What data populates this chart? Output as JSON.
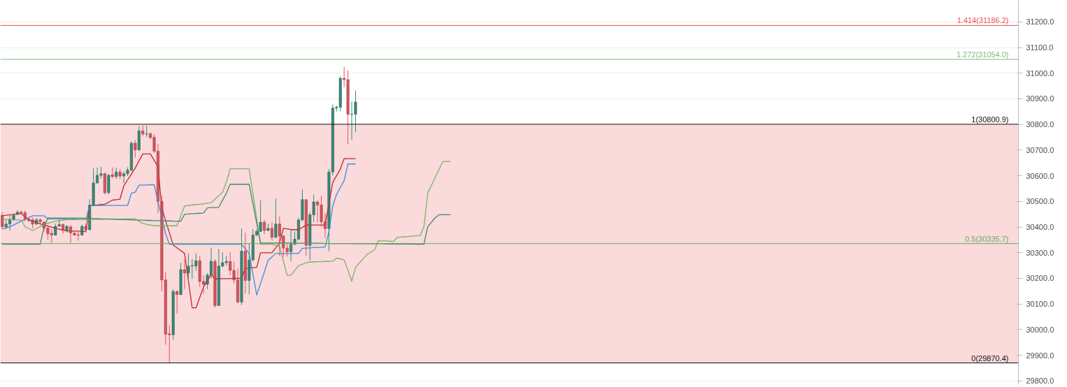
{
  "chart_data": {
    "type": "candlestick",
    "categories": [
      null,
      null,
      null,
      null,
      null,
      null,
      null,
      null,
      null,
      null,
      null,
      null,
      null,
      null,
      null,
      null,
      null,
      null,
      null,
      null,
      null,
      null,
      null,
      null,
      null,
      null,
      null,
      null,
      null,
      null,
      null,
      null,
      null,
      null,
      null,
      null,
      null,
      null,
      null,
      null,
      null,
      null,
      null,
      null,
      null,
      null,
      null,
      null,
      null,
      null,
      null,
      null,
      null,
      null,
      null,
      null,
      null,
      null,
      null,
      null,
      null,
      null,
      null,
      null,
      null,
      null,
      null,
      null,
      null,
      null,
      null,
      null,
      null,
      null,
      null,
      null,
      null,
      null,
      null,
      null,
      null,
      null,
      null,
      null,
      null,
      null,
      null,
      null,
      null,
      null,
      null,
      null,
      null,
      null,
      null,
      null,
      null,
      null,
      null,
      null,
      null,
      null,
      null,
      null,
      null,
      null,
      null,
      null,
      null,
      null,
      null,
      null,
      null,
      null,
      null,
      null,
      null,
      null,
      null,
      null,
      null,
      null,
      null,
      null,
      null,
      null,
      null,
      null,
      null,
      null,
      null,
      null,
      null,
      null,
      null,
      null,
      null,
      null,
      null,
      null,
      null,
      null,
      null,
      null,
      null,
      null,
      null,
      null,
      null,
      null,
      null,
      null,
      null,
      null,
      null,
      null,
      null,
      null,
      null,
      null,
      null,
      null,
      null,
      null,
      null,
      null,
      null,
      null,
      null,
      null,
      null,
      null,
      null,
      null,
      null,
      null,
      null,
      null,
      null,
      null,
      null,
      null,
      null,
      null,
      null,
      null,
      null,
      null,
      null,
      null,
      null,
      null,
      null,
      null,
      null,
      null,
      null,
      null,
      null,
      null,
      null,
      null,
      null,
      null,
      null,
      null,
      null,
      null,
      null,
      null,
      null,
      null,
      null,
      null,
      null,
      null,
      null,
      null,
      null,
      null,
      null,
      null,
      null,
      null,
      null,
      null,
      null,
      null,
      null,
      null,
      null,
      null,
      null,
      null,
      null,
      null,
      null,
      null,
      null,
      null,
      null,
      null,
      null,
      null,
      null,
      null,
      null,
      null,
      null,
      null,
      null,
      null,
      null,
      null,
      null,
      null,
      null,
      null,
      null,
      null,
      null,
      null,
      null,
      null,
      null,
      null,
      null,
      null
    ],
    "ohlc": [
      [
        30446,
        30459,
        30392,
        30401
      ],
      [
        30401,
        30428,
        30392,
        30412
      ],
      [
        30412,
        30446,
        30387,
        30430
      ],
      [
        30430,
        30455,
        30423,
        30446
      ],
      [
        30450,
        30466,
        30446,
        30458
      ],
      [
        30458,
        30464,
        30448,
        30455
      ],
      [
        30456,
        30464,
        30423,
        30431
      ],
      [
        30431,
        30441,
        30419,
        30426
      ],
      [
        30428,
        30437,
        30396,
        30412
      ],
      [
        30412,
        30435,
        30408,
        30428
      ],
      [
        30428,
        30435,
        30410,
        30421
      ],
      [
        30419,
        30423,
        30383,
        30396
      ],
      [
        30396,
        30408,
        30351,
        30374
      ],
      [
        30376,
        30392,
        30338,
        30369
      ],
      [
        30369,
        30414,
        30367,
        30403
      ],
      [
        30404,
        30428,
        30401,
        30410
      ],
      [
        30410,
        30414,
        30374,
        30387
      ],
      [
        30387,
        30408,
        30378,
        30403
      ],
      [
        30401,
        30408,
        30338,
        30377
      ],
      [
        30376,
        30387,
        30367,
        30369
      ],
      [
        30370,
        30387,
        30347,
        30369
      ],
      [
        30369,
        30410,
        30367,
        30403
      ],
      [
        30403,
        30414,
        30378,
        30390
      ],
      [
        30390,
        30509,
        30387,
        30486
      ],
      [
        30485,
        30631,
        30482,
        30572
      ],
      [
        30572,
        30632,
        30570,
        30602
      ],
      [
        30602,
        30635,
        30590,
        30608
      ],
      [
        30608,
        30613,
        30527,
        30534
      ],
      [
        30534,
        30608,
        30527,
        30602
      ],
      [
        30604,
        30633,
        30590,
        30597
      ],
      [
        30597,
        30631,
        30588,
        30615
      ],
      [
        30615,
        30626,
        30588,
        30599
      ],
      [
        30599,
        30617,
        30572,
        30608
      ],
      [
        30608,
        30633,
        30599,
        30622
      ],
      [
        30622,
        30734,
        30617,
        30727
      ],
      [
        30727,
        30739,
        30671,
        30701
      ],
      [
        30701,
        30793,
        30698,
        30775
      ],
      [
        30775,
        30797,
        30754,
        30764
      ],
      [
        30763,
        30795,
        30752,
        30764
      ],
      [
        30764,
        30770,
        30743,
        30749
      ],
      [
        30750,
        30761,
        30689,
        30696
      ],
      [
        30696,
        30725,
        30455,
        30500
      ],
      [
        30500,
        30522,
        30149,
        30194
      ],
      [
        30194,
        30225,
        29941,
        29982
      ],
      [
        29984,
        30018,
        29871,
        29980
      ],
      [
        29980,
        30158,
        29961,
        30149
      ],
      [
        30149,
        30153,
        30063,
        30137
      ],
      [
        30137,
        30261,
        30135,
        30234
      ],
      [
        30234,
        30275,
        30158,
        30221
      ],
      [
        30221,
        30297,
        30185,
        30248
      ],
      [
        30248,
        30275,
        30198,
        30250
      ],
      [
        30248,
        30297,
        30230,
        30269
      ],
      [
        30269,
        30288,
        30167,
        30188
      ],
      [
        30188,
        30212,
        30140,
        30177
      ],
      [
        30177,
        30221,
        30158,
        30213
      ],
      [
        30213,
        30320,
        30198,
        30267
      ],
      [
        30266,
        30275,
        30087,
        30094
      ],
      [
        30094,
        30315,
        30093,
        30248
      ],
      [
        30248,
        30302,
        30243,
        30261
      ],
      [
        30261,
        30288,
        30249,
        30266
      ],
      [
        30266,
        30302,
        30212,
        30231
      ],
      [
        30231,
        30266,
        30180,
        30194
      ],
      [
        30194,
        30239,
        30103,
        30108
      ],
      [
        30108,
        30394,
        30096,
        30306
      ],
      [
        30306,
        30378,
        30140,
        30192
      ],
      [
        30192,
        30338,
        30138,
        30272
      ],
      [
        30272,
        30392,
        30266,
        30369
      ],
      [
        30369,
        30392,
        30365,
        30383
      ],
      [
        30383,
        30504,
        30381,
        30419
      ],
      [
        30419,
        30428,
        30372,
        30387
      ],
      [
        30387,
        30414,
        30383,
        30395
      ],
      [
        30395,
        30419,
        30347,
        30360
      ],
      [
        30360,
        30511,
        30358,
        30412
      ],
      [
        30412,
        30441,
        30288,
        30365
      ],
      [
        30365,
        30369,
        30284,
        30318
      ],
      [
        30318,
        30333,
        30285,
        30304
      ],
      [
        30304,
        30387,
        30266,
        30333
      ],
      [
        30333,
        30383,
        30329,
        30353
      ],
      [
        30353,
        30437,
        30347,
        30428
      ],
      [
        30428,
        30547,
        30423,
        30507
      ],
      [
        30507,
        30507,
        30288,
        30329
      ],
      [
        30329,
        30457,
        30270,
        30448
      ],
      [
        30448,
        30527,
        30419,
        30498
      ],
      [
        30498,
        30504,
        30419,
        30486
      ],
      [
        30486,
        30522,
        30401,
        30421
      ],
      [
        30421,
        30455,
        30358,
        30394
      ],
      [
        30394,
        30626,
        30306,
        30615
      ],
      [
        30615,
        30878,
        30601,
        30864
      ],
      [
        30864,
        30874,
        30851,
        30867
      ],
      [
        30867,
        30987,
        30851,
        30980
      ],
      [
        30980,
        31024,
        30946,
        30975
      ],
      [
        30975,
        31011,
        30723,
        30840
      ],
      [
        30839,
        30889,
        30741,
        30840
      ],
      [
        30840,
        30932,
        30770,
        30888
      ],
      null,
      null,
      null,
      null,
      null,
      null,
      null,
      null,
      null,
      null,
      null,
      null,
      null,
      null,
      null,
      null,
      null,
      null,
      null,
      null,
      null,
      null,
      null,
      null,
      null,
      null,
      null,
      null,
      null,
      null,
      null,
      null,
      null,
      null,
      null,
      null,
      null,
      null,
      null,
      null,
      null,
      null,
      null,
      null,
      null,
      null,
      null,
      null,
      null,
      null,
      null,
      null,
      null,
      null,
      null,
      null,
      null,
      null,
      null,
      null,
      null,
      null,
      null,
      null,
      null,
      null,
      null,
      null,
      null,
      null,
      null,
      null,
      null,
      null,
      null,
      null,
      null,
      null,
      null,
      null,
      null,
      null,
      null,
      null,
      null,
      null,
      null,
      null,
      null,
      null,
      null,
      null,
      null,
      null,
      null,
      null,
      null,
      null,
      null,
      null,
      null,
      null,
      null,
      null,
      null,
      null,
      null,
      null,
      null,
      null,
      null,
      null,
      null,
      null,
      null,
      null,
      null,
      null,
      null,
      null,
      null,
      null,
      null,
      null,
      null,
      null,
      null,
      null,
      null,
      null,
      null,
      null,
      null,
      null,
      null,
      null,
      null,
      null,
      null,
      null,
      null,
      null,
      null,
      null,
      null,
      null,
      null,
      null,
      null,
      null,
      null,
      null,
      null,
      null,
      null,
      null,
      null,
      null,
      null,
      null,
      null,
      null,
      null,
      null,
      null,
      null,
      null,
      null,
      null,
      null,
      null,
      null,
      null,
      null
    ],
    "colors": [
      "#ef4d5a",
      "#2f8f7a",
      "#2f8f7a",
      "#2f8f7a",
      "#2f8f7a",
      "#ef4d5a",
      "#ef4d5a",
      "#ef4d5a",
      "#ef4d5a",
      "#2f8f7a",
      "#ef4d5a",
      "#ef4d5a",
      "#ef4d5a",
      "#ef4d5a",
      "#2f8f7a",
      "#2f8f7a",
      "#ef4d5a",
      "#2f8f7a",
      "#ef4d5a",
      "#ef4d5a",
      "#ef4d5a",
      "#2f8f7a",
      "#ef4d5a",
      "#2f8f7a",
      "#2f8f7a",
      "#2f8f7a",
      "#2f8f7a",
      "#ef4d5a",
      "#2f8f7a",
      "#ef4d5a",
      "#2f8f7a",
      "#ef4d5a",
      "#2f8f7a",
      "#2f8f7a",
      "#2f8f7a",
      "#ef4d5a",
      "#2f8f7a",
      "#ef4d5a",
      "#2f8f7a",
      "#ef4d5a",
      "#ef4d5a",
      "#ef4d5a",
      "#ef4d5a",
      "#ef4d5a",
      "#ef4d5a",
      "#2f8f7a",
      "#ef4d5a",
      "#2f8f7a",
      "#ef4d5a",
      "#2f8f7a",
      "#2f8f7a",
      "#2f8f7a",
      "#ef4d5a",
      "#ef4d5a",
      "#2f8f7a",
      "#2f8f7a",
      "#ef4d5a",
      "#2f8f7a",
      "#2f8f7a",
      "#2f8f7a",
      "#ef4d5a",
      "#ef4d5a",
      "#ef4d5a",
      "#2f8f7a",
      "#ef4d5a",
      "#2f8f7a",
      "#2f8f7a",
      "#2f8f7a",
      "#2f8f7a",
      "#ef4d5a",
      "#2f8f7a",
      "#ef4d5a",
      "#2f8f7a",
      "#ef4d5a",
      "#ef4d5a",
      "#ef4d5a",
      "#2f8f7a",
      "#2f8f7a",
      "#2f8f7a",
      "#2f8f7a",
      "#ef4d5a",
      "#2f8f7a",
      "#2f8f7a",
      "#ef4d5a",
      "#ef4d5a",
      "#ef4d5a",
      "#2f8f7a",
      "#2f8f7a",
      "#2f8f7a",
      "#2f8f7a",
      "#ef4d5a",
      "#ef4d5a",
      "#2f8f7a",
      "#2f8f7a",
      null,
      null,
      null,
      null,
      null,
      null,
      null,
      null,
      null,
      null,
      null,
      null,
      null,
      null,
      null,
      null,
      null,
      null,
      null,
      null,
      null,
      null,
      null,
      null,
      null,
      null,
      null,
      null,
      null,
      null,
      null,
      null,
      null,
      null,
      null,
      null,
      null,
      null,
      null,
      null,
      null,
      null,
      null,
      null,
      null,
      null,
      null,
      null,
      null,
      null,
      null,
      null,
      null,
      null,
      null,
      null,
      null,
      null,
      null,
      null,
      null,
      null,
      null,
      null,
      null,
      null,
      null,
      null,
      null,
      null,
      null,
      null,
      null,
      null,
      null,
      null,
      null,
      null,
      null,
      null,
      null,
      null,
      null,
      null,
      null,
      null,
      null,
      null,
      null,
      null,
      null,
      null,
      null,
      null,
      null,
      null,
      null,
      null,
      null,
      null,
      null,
      null,
      null,
      null,
      null,
      null,
      null,
      null,
      null,
      null,
      null,
      null,
      null,
      null,
      null,
      null,
      null,
      null,
      null,
      null,
      null,
      null,
      null,
      null,
      null,
      null,
      null,
      null,
      null,
      null,
      null,
      null,
      null,
      null,
      null,
      null,
      null,
      null,
      null,
      null,
      null,
      null,
      null,
      null,
      null,
      null,
      null,
      null,
      null,
      null,
      null,
      null,
      null,
      null,
      null,
      null,
      null,
      null,
      null,
      null,
      null,
      null,
      null,
      null,
      null,
      null,
      null,
      null,
      null,
      null,
      null,
      null,
      null,
      null
    ],
    "series": [
      {
        "type": "line",
        "color": "#c0262d",
        "values": [
          30444,
          30446,
          30448,
          30449,
          30451,
          30453,
          30440,
          30428,
          30423,
          30418,
          30413,
          30408,
          30404,
          30400,
          30396,
          30392,
          30388,
          30385,
          30385,
          30384,
          30384,
          30383,
          30383,
          30484,
          30485,
          30486,
          30488,
          30489,
          30497,
          30505,
          30507,
          30509,
          30561,
          30584,
          30607,
          30630,
          30658,
          30685,
          30685,
          30685,
          30660,
          30635,
          30473,
          30425,
          30378,
          30330,
          30319,
          30308,
          30297,
          30191,
          30085,
          30085,
          30126,
          30167,
          30192,
          30216,
          30198,
          30198,
          30199,
          30199,
          30199,
          30200,
          30200,
          30201,
          30239,
          30240,
          30242,
          30243,
          30300,
          30300,
          30300,
          30300,
          30319,
          30338,
          30395,
          30393,
          30390,
          30390,
          30390,
          30399,
          30408,
          30408,
          30408,
          30408,
          30408,
          30408,
          30491,
          30574,
          30600,
          30626,
          30667,
          30667,
          30667,
          30667,
          null,
          null,
          null,
          null,
          null,
          null,
          null,
          null,
          null,
          null,
          null,
          null,
          null,
          null,
          null,
          null,
          null,
          null,
          null,
          null,
          null,
          null,
          null,
          null,
          null,
          null,
          null,
          null,
          null,
          null,
          null,
          null,
          null,
          null,
          null,
          null,
          null,
          null,
          null,
          null,
          null,
          null,
          null,
          null,
          null,
          null,
          null,
          null,
          null,
          null,
          null,
          null,
          null,
          null,
          null,
          null,
          null,
          null,
          null,
          null,
          null,
          null,
          null,
          null,
          null,
          null,
          null,
          null,
          null,
          null,
          null,
          null,
          null,
          null,
          null,
          null,
          null,
          null,
          null,
          null,
          null,
          null,
          null,
          null,
          null,
          null,
          null,
          null,
          null,
          null,
          null,
          null,
          null,
          null,
          null,
          null,
          null,
          null,
          null,
          null,
          null,
          null,
          null,
          null,
          null,
          null,
          null,
          null,
          null,
          null,
          null,
          null,
          null,
          null,
          null,
          null,
          null,
          null,
          null,
          null,
          null,
          null,
          null,
          null,
          null,
          null,
          null,
          null,
          null,
          null,
          null,
          null,
          null,
          null,
          null,
          null,
          null,
          null,
          null,
          null,
          null,
          null,
          null,
          null,
          null,
          null,
          null,
          null,
          null,
          null,
          null,
          null,
          null,
          null,
          null,
          null,
          null,
          null,
          null,
          null,
          null,
          null,
          null,
          null,
          null,
          null,
          null,
          null,
          null,
          null,
          null,
          null,
          null,
          null
        ]
      },
      {
        "type": "line",
        "color": "#3b8de0",
        "values": [
          30392,
          30397,
          30401,
          30408,
          30416,
          30423,
          30430,
          30437,
          30444,
          30444,
          30444,
          30444,
          30432,
          30432,
          30432,
          30432,
          30431,
          30431,
          30431,
          30431,
          30430,
          30430,
          30430,
          30484,
          30484,
          30484,
          30484,
          30484,
          30484,
          30484,
          30484,
          30484,
          30484,
          30484,
          30532,
          30536,
          30563,
          30564,
          30564,
          30565,
          30565,
          30500,
          30437,
          30374,
          30333,
          30333,
          30333,
          30333,
          30333,
          30333,
          30333,
          30333,
          30333,
          30333,
          30333,
          30333,
          30333,
          30333,
          30333,
          30333,
          30333,
          30333,
          30333,
          30333,
          30315,
          30297,
          30216,
          30135,
          30180,
          30225,
          30270,
          30284,
          30297,
          30297,
          30297,
          30297,
          30297,
          30297,
          30297,
          30317,
          30318,
          30319,
          30320,
          30321,
          30321,
          30322,
          30383,
          30482,
          30527,
          30554,
          30581,
          30646,
          30646,
          30646,
          null,
          null,
          null,
          null,
          null,
          null,
          null,
          null,
          null,
          null,
          null,
          null,
          null,
          null,
          null,
          null,
          null,
          null,
          null,
          null,
          null,
          null,
          null,
          null,
          null,
          null,
          null,
          null,
          null,
          null,
          null,
          null,
          null,
          null,
          null,
          null,
          null,
          null,
          null,
          null,
          null,
          null,
          null,
          null,
          null,
          null,
          null,
          null,
          null,
          null,
          null,
          null,
          null,
          null,
          null,
          null,
          null,
          null,
          null,
          null,
          null,
          null,
          null,
          null,
          null,
          null,
          null,
          null,
          null,
          null,
          null,
          null,
          null,
          null,
          null,
          null,
          null,
          null,
          null,
          null,
          null,
          null,
          null,
          null,
          null,
          null,
          null,
          null,
          null,
          null,
          null,
          null,
          null,
          null,
          null,
          null,
          null,
          null,
          null,
          null,
          null,
          null,
          null,
          null,
          null,
          null,
          null,
          null,
          null,
          null,
          null,
          null,
          null,
          null,
          null,
          null,
          null,
          null,
          null,
          null,
          null,
          null,
          null,
          null,
          null,
          null,
          null,
          null,
          null,
          null,
          null,
          null,
          null,
          null,
          null,
          null,
          null,
          null,
          null,
          null,
          null,
          null,
          null,
          null,
          null,
          null,
          null,
          null,
          null,
          null,
          null,
          null,
          null,
          null,
          null,
          null,
          null,
          null,
          null,
          null,
          null,
          null,
          null,
          null,
          null,
          null,
          null,
          null,
          null,
          null,
          null,
          null,
          null,
          null
        ]
      },
      {
        "type": "line",
        "color": "#7cb36a",
        "values": [
          30430,
          30430,
          30429,
          30429,
          30428,
          30428,
          30401,
          30394,
          30387,
          30394,
          30402,
          30410,
          30414,
          30419,
          30423,
          30425,
          30427,
          30429,
          30429,
          30429,
          30429,
          30430,
          30430,
          30430,
          30430,
          30430,
          30430,
          30431,
          30431,
          30431,
          30431,
          30431,
          30431,
          30432,
          30432,
          30432,
          30423,
          30414,
          30411,
          30408,
          30405,
          30405,
          30405,
          30405,
          30405,
          30405,
          30405,
          30444,
          30482,
          30484,
          30486,
          30488,
          30489,
          30491,
          30493,
          30495,
          30509,
          30522,
          30536,
          30576,
          30627,
          30627,
          30627,
          30627,
          30627,
          30627,
          30529,
          30431,
          30333,
          30333,
          30333,
          30333,
          30329,
          30324,
          30268,
          30212,
          30212,
          30231,
          30249,
          30255,
          30261,
          30264,
          30264,
          30265,
          30265,
          30266,
          30266,
          30267,
          30279,
          30276,
          30272,
          30231,
          30189,
          30243,
          30260,
          30276,
          30293,
          30302,
          30311,
          30347,
          30346,
          30346,
          30345,
          30344,
          30360,
          30361,
          30362,
          30363,
          30365,
          30366,
          30367,
          30401,
          30532,
          30563,
          30594,
          30625,
          30656,
          30656,
          30656,
          null,
          null,
          null,
          null,
          null,
          null,
          null,
          null,
          null,
          null,
          null,
          null,
          null,
          null,
          null,
          null,
          null,
          null,
          null,
          null,
          null,
          null,
          null,
          null,
          null,
          null,
          null,
          null,
          null,
          null,
          null,
          null,
          null,
          null,
          null,
          null,
          null,
          null,
          null,
          null,
          null,
          null,
          null,
          null,
          null,
          null,
          null,
          null,
          null,
          null,
          null,
          null,
          null,
          null,
          null,
          null,
          null,
          null,
          null,
          null,
          null,
          null,
          null,
          null,
          null,
          null,
          null,
          null,
          null,
          null,
          null,
          null,
          null,
          null,
          null,
          null,
          null,
          null,
          null,
          null,
          null,
          null,
          null,
          null,
          null,
          null,
          null,
          null,
          null,
          null,
          null,
          null,
          null,
          null,
          null,
          null,
          null,
          null,
          null,
          null,
          null,
          null,
          null,
          null,
          null,
          null,
          null,
          null,
          null,
          null,
          null,
          null,
          null,
          null,
          null,
          null,
          null,
          null,
          null,
          null,
          null,
          null,
          null,
          null,
          null,
          null,
          null,
          null,
          null,
          null,
          null,
          null,
          null,
          null,
          null,
          null,
          null,
          null,
          null,
          null,
          null,
          null,
          null,
          null,
          null,
          null,
          null,
          null,
          null
        ]
      },
      {
        "type": "line",
        "color": "#3f8a6c",
        "values": [
          30333,
          30333,
          30333,
          30333,
          30333,
          30333,
          30333,
          30333,
          30333,
          30333,
          30333,
          30400,
          30435,
          30435,
          30435,
          30435,
          30435,
          30435,
          30435,
          30435,
          30435,
          30435,
          30434,
          30434,
          30433,
          30433,
          30432,
          30432,
          30431,
          30431,
          30430,
          30430,
          30429,
          30429,
          30428,
          30428,
          30427,
          30427,
          30426,
          30426,
          30425,
          30425,
          30424,
          30424,
          30424,
          30423,
          30423,
          30423,
          30450,
          30451,
          30452,
          30453,
          30454,
          30455,
          30475,
          30476,
          30476,
          30477,
          30505,
          30532,
          30567,
          30567,
          30567,
          30567,
          30567,
          30567,
          30491,
          30414,
          30338,
          30338,
          30338,
          30338,
          30338,
          30338,
          30338,
          30338,
          30338,
          30337,
          30337,
          30337,
          30337,
          30337,
          30337,
          30337,
          30337,
          30336,
          30336,
          30336,
          30336,
          30336,
          30336,
          30336,
          30336,
          30335,
          30335,
          30335,
          30335,
          30335,
          30335,
          30335,
          30335,
          30334,
          30334,
          30334,
          30334,
          30334,
          30334,
          30334,
          30334,
          30333,
          30333,
          30333,
          30401,
          30419,
          30437,
          30448,
          30448,
          30448,
          30448,
          null,
          null,
          null,
          null,
          null,
          null,
          null,
          null,
          null,
          null,
          null,
          null,
          null,
          null,
          null,
          null,
          null,
          null,
          null,
          null,
          null,
          null,
          null,
          null,
          null,
          null,
          null,
          null,
          null,
          null,
          null,
          null,
          null,
          null,
          null,
          null,
          null,
          null,
          null,
          null,
          null,
          null,
          null,
          null,
          null,
          null,
          null,
          null,
          null,
          null,
          null,
          null,
          null,
          null,
          null,
          null,
          null,
          null,
          null,
          null,
          null,
          null,
          null,
          null,
          null,
          null,
          null,
          null,
          null,
          null,
          null,
          null,
          null,
          null,
          null,
          null,
          null,
          null,
          null,
          null,
          null,
          null,
          null,
          null,
          null,
          null,
          null,
          null,
          null,
          null,
          null,
          null,
          null,
          null,
          null,
          null,
          null,
          null,
          null,
          null,
          null,
          null,
          null,
          null,
          null,
          null,
          null,
          null,
          null,
          null,
          null,
          null,
          null,
          null,
          null,
          null,
          null,
          null,
          null,
          null,
          null,
          null,
          null,
          null,
          null,
          null,
          null,
          null,
          null,
          null,
          null,
          null,
          null,
          null,
          null,
          null,
          null,
          null,
          null,
          null,
          null,
          null,
          null,
          null,
          null,
          null,
          null,
          null,
          null
        ]
      }
    ],
    "ref_lines": [
      {
        "axis": "y",
        "value": 31186.2,
        "label": "1.414(31186.2)",
        "color": "#ef4d4d"
      },
      {
        "axis": "y",
        "value": 31054.0,
        "label": "1.272(31054.0)",
        "color": "#81b97a"
      },
      {
        "axis": "y",
        "value": 30800.9,
        "label": "1(30800.9)",
        "color": "#111111"
      },
      {
        "axis": "y",
        "value": 30335.7,
        "label": "0.5(30335.7)",
        "color": "#6aa864"
      },
      {
        "axis": "y",
        "value": 29870.4,
        "label": "0(29870.4)",
        "color": "#111111"
      }
    ],
    "bands": [
      {
        "axis": "y",
        "from": 29870.4,
        "to": 30800.9,
        "color": "#f9d6d6"
      }
    ],
    "ylim": [
      29786,
      31284
    ],
    "yticks": [
      {
        "value": 29800,
        "label": "29800.0"
      },
      {
        "value": 29900,
        "label": "29900.0"
      },
      {
        "value": 30000,
        "label": "30000.0"
      },
      {
        "value": 30100,
        "label": "30100.0"
      },
      {
        "value": 30200,
        "label": "30200.0"
      },
      {
        "value": 30300,
        "label": "30300.0"
      },
      {
        "value": 30400,
        "label": "30400.0"
      },
      {
        "value": 30500,
        "label": "30500.0"
      },
      {
        "value": 30600,
        "label": "30600.0"
      },
      {
        "value": 30700,
        "label": "30700.0"
      },
      {
        "value": 30800,
        "label": "30800.0"
      },
      {
        "value": 30900,
        "label": "30900.0"
      },
      {
        "value": 31000,
        "label": "31000.0"
      },
      {
        "value": 31100,
        "label": "31100.0"
      },
      {
        "value": 31200,
        "label": "31200.0"
      }
    ],
    "grid": "y"
  }
}
